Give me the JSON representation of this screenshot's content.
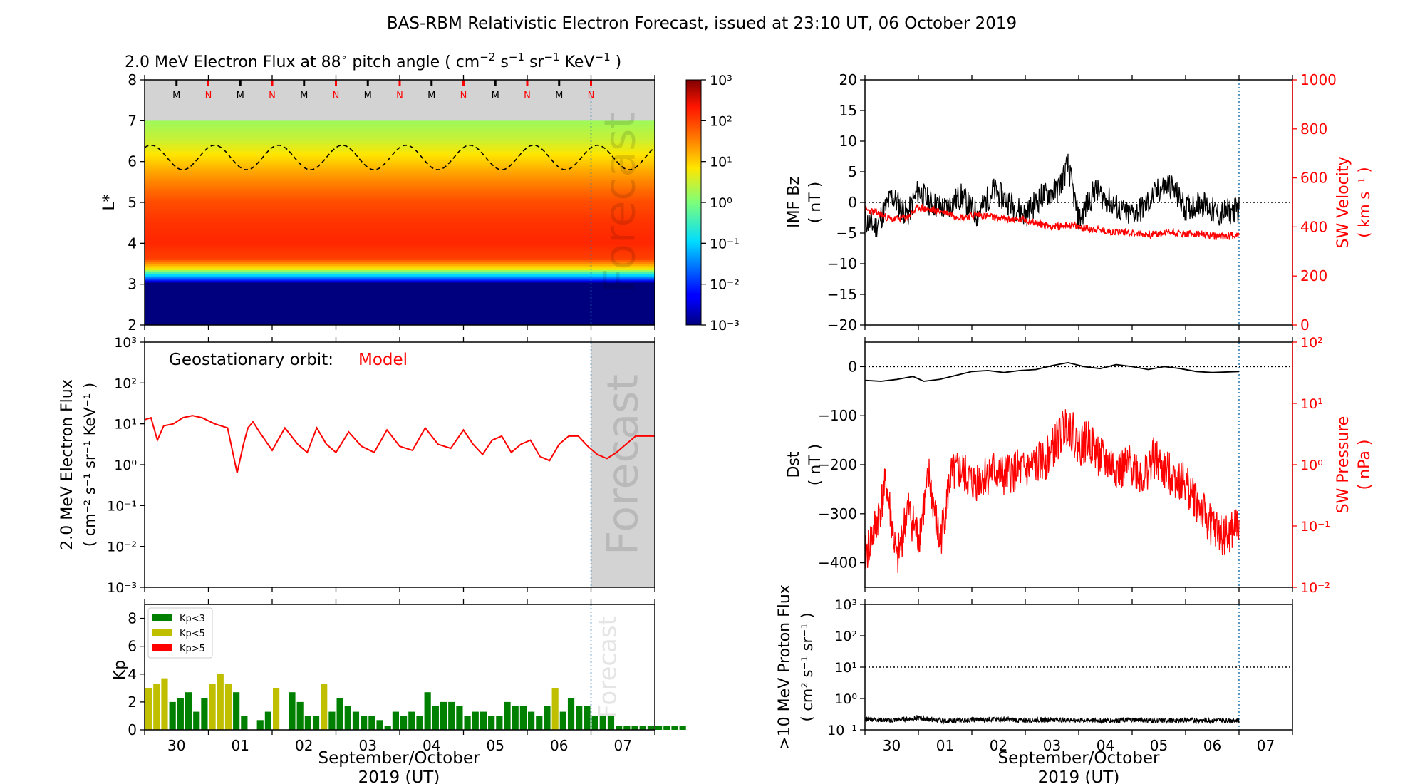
{
  "figure_title": "BAS-RBM Relativistic Electron Forecast, issued at 23:10 UT, 06 October 2019",
  "colors": {
    "red": "#ff0000",
    "black": "#000000",
    "green": "#008000",
    "olive": "#bfbf00",
    "forecast_grey": "#d3d3d3",
    "divider": "#1f77b4"
  },
  "chart_data": [
    {
      "id": "flux-heatmap",
      "type": "heatmap",
      "title": "2.0 MeV Electron Flux at 88 ° pitch angle ( cm⁻² s⁻¹ sr⁻¹ KeV⁻¹ )",
      "title_parts": {
        "pre": "2.0 MeV Electron Flux at 88",
        "deg": "∘",
        "mid": " pitch angle ( cm",
        "u1": "−2",
        "s": " s",
        "u2": "−1",
        "sr": " sr",
        "u3": "−1",
        "kev": " KeV",
        "u4": "−1",
        "post": " )"
      },
      "ylabel": "L*",
      "ylim": [
        2,
        8
      ],
      "yticks": [
        2,
        3,
        4,
        5,
        6,
        7,
        8
      ],
      "xlim": [
        0,
        8
      ],
      "forecast_start": 7,
      "forecast_label": "Forecast",
      "orbit_markers": [
        "M",
        "N",
        "M",
        "N",
        "M",
        "N",
        "M",
        "N",
        "M",
        "N",
        "M",
        "N",
        "M",
        "N"
      ],
      "colorbar": {
        "scale": "log",
        "min_exp": -3,
        "max_exp": 3,
        "ticks": [
          "10³",
          "10²",
          "10¹",
          "10⁰",
          "10⁻¹",
          "10⁻²",
          "10⁻³"
        ]
      },
      "band_profile": {
        "L": [
          2.0,
          3.0,
          3.1,
          3.2,
          3.35,
          3.6,
          4.0,
          4.5,
          5.0,
          5.6,
          6.0,
          6.5,
          7.0
        ],
        "log_flux": [
          -3,
          -3,
          -2,
          -1,
          0.7,
          2.0,
          2.2,
          2.1,
          1.9,
          1.4,
          1.0,
          0.5,
          0.2
        ]
      },
      "contour": {
        "mean_L": 6.1,
        "amplitude": 0.3,
        "cycles_per_day": 1,
        "style": "dashed"
      }
    },
    {
      "id": "geo-flux",
      "type": "line",
      "annotation_label": "Geostationary orbit:",
      "annotation_value": "Model",
      "ylabel_line1": "2.0 MeV Electron Flux",
      "ylabel_line2": "( cm⁻² s⁻¹ sr⁻¹ KeV⁻¹ )",
      "yscale": "log",
      "ylim_exp": [
        -3,
        3
      ],
      "yticks": [
        "10³",
        "10²",
        "10¹",
        "10⁰",
        "10⁻¹",
        "10⁻²",
        "10⁻³"
      ],
      "forecast_label": "Forecast",
      "series": [
        {
          "name": "Model",
          "color": "#ff0000",
          "x": [
            0.0,
            0.1,
            0.2,
            0.3,
            0.45,
            0.6,
            0.75,
            0.9,
            1.1,
            1.3,
            1.45,
            1.55,
            1.62,
            1.7,
            1.8,
            2.0,
            2.2,
            2.4,
            2.55,
            2.7,
            2.85,
            3.0,
            3.2,
            3.4,
            3.6,
            3.8,
            4.0,
            4.2,
            4.4,
            4.6,
            4.8,
            5.0,
            5.15,
            5.3,
            5.45,
            5.6,
            5.75,
            5.9,
            6.05,
            6.2,
            6.35,
            6.5,
            6.65,
            6.8,
            6.95,
            7.1,
            7.25,
            7.4,
            7.55,
            7.7,
            7.85,
            8.0
          ],
          "y_exp": [
            1.1,
            1.15,
            0.6,
            0.95,
            1.0,
            1.15,
            1.2,
            1.15,
            1.0,
            0.9,
            -0.2,
            0.5,
            0.9,
            1.05,
            0.8,
            0.35,
            0.9,
            0.5,
            0.3,
            0.9,
            0.5,
            0.3,
            0.8,
            0.45,
            0.3,
            0.85,
            0.45,
            0.35,
            0.9,
            0.5,
            0.4,
            0.85,
            0.5,
            0.25,
            0.6,
            0.7,
            0.3,
            0.5,
            0.6,
            0.2,
            0.1,
            0.5,
            0.7,
            0.7,
            0.45,
            0.25,
            0.15,
            0.3,
            0.5,
            0.7,
            0.7,
            0.7
          ]
        }
      ]
    },
    {
      "id": "kp-index",
      "type": "bar",
      "ylabel": "Kp",
      "ylim": [
        0,
        9
      ],
      "yticks": [
        0,
        2,
        4,
        6,
        8
      ],
      "forecast_label": "Forecast",
      "legend": [
        {
          "label": "Kp<3",
          "color": "#008000"
        },
        {
          "label": "Kp<5",
          "color": "#bfbf00"
        },
        {
          "label": "Kp>5",
          "color": "#ff0000"
        }
      ],
      "bin_width": 0.125,
      "values": [
        3.0,
        3.3,
        3.7,
        2.0,
        2.3,
        2.7,
        1.3,
        2.3,
        3.3,
        4.0,
        3.3,
        2.7,
        1.0,
        0.0,
        0.7,
        1.3,
        3.0,
        0.0,
        2.7,
        2.0,
        1.0,
        1.0,
        3.3,
        1.3,
        2.3,
        1.7,
        1.3,
        1.0,
        1.0,
        0.7,
        0.3,
        1.3,
        1.0,
        1.3,
        1.0,
        2.7,
        1.7,
        2.0,
        2.0,
        1.7,
        1.0,
        1.3,
        1.3,
        1.0,
        1.0,
        2.0,
        1.7,
        1.7,
        1.3,
        1.0,
        1.7,
        3.0,
        1.3,
        2.3,
        1.7,
        1.7,
        1.0,
        1.0,
        1.0,
        0.3,
        0.3,
        0.3,
        0.3,
        0.3,
        0.3,
        0.3,
        0.3,
        0.3
      ]
    },
    {
      "id": "imf-sw",
      "type": "line",
      "ylabel_left_1": "IMF Bz",
      "ylabel_left_2": "( nT )",
      "ylabel_right_1": "SW Velocity",
      "ylabel_right_2": "( km s⁻¹ )",
      "ylim_left": [
        -20,
        20
      ],
      "yticks_left": [
        20,
        15,
        10,
        5,
        0,
        -5,
        -10,
        -15,
        -20
      ],
      "ylim_right": [
        0,
        1000
      ],
      "yticks_right": [
        1000,
        800,
        600,
        400,
        200,
        0
      ],
      "series": [
        {
          "name": "IMF Bz",
          "color": "#000000",
          "x": [
            0.0,
            0.2,
            0.5,
            0.8,
            1.0,
            1.2,
            1.5,
            1.8,
            2.1,
            2.4,
            2.7,
            3.0,
            3.3,
            3.6,
            3.8,
            4.0,
            4.3,
            4.6,
            4.9,
            5.2,
            5.5,
            5.7,
            6.0,
            6.3,
            6.6,
            7.0
          ],
          "y": [
            -3,
            -4,
            1,
            -2,
            2,
            0,
            -1,
            1,
            -2,
            2,
            0,
            -2,
            1,
            2,
            6,
            -3,
            2,
            0,
            -2,
            -1,
            2,
            3,
            -1,
            0,
            -2,
            -1
          ]
        },
        {
          "name": "SW Velocity",
          "color": "#ff0000",
          "x": [
            0.0,
            0.2,
            0.5,
            0.8,
            1.0,
            1.2,
            1.5,
            1.8,
            2.1,
            2.4,
            2.7,
            3.0,
            3.3,
            3.6,
            3.8,
            4.0,
            4.3,
            4.6,
            4.9,
            5.2,
            5.5,
            5.7,
            6.0,
            6.3,
            6.6,
            7.0
          ],
          "y": [
            470,
            460,
            430,
            440,
            480,
            470,
            460,
            440,
            450,
            440,
            430,
            430,
            410,
            400,
            410,
            400,
            390,
            380,
            380,
            370,
            370,
            380,
            370,
            370,
            360,
            370
          ]
        }
      ],
      "zero_line": 0
    },
    {
      "id": "dst-pressure",
      "type": "line",
      "ylabel_left_1": "Dst",
      "ylabel_left_2": "( nT )",
      "ylabel_right_1": "SW Pressure",
      "ylabel_right_2": "( nPa )",
      "ylim_left": [
        -450,
        50
      ],
      "yticks_left": [
        0,
        -100,
        -200,
        -300,
        -400
      ],
      "yscale_right": "log",
      "ylim_right_exp": [
        -2,
        2
      ],
      "yticks_right": [
        "10²",
        "10¹",
        "10⁰",
        "10⁻¹",
        "10⁻²"
      ],
      "series": [
        {
          "name": "Dst",
          "color": "#000000",
          "x": [
            0.0,
            0.3,
            0.6,
            0.9,
            1.1,
            1.4,
            1.7,
            2.0,
            2.3,
            2.6,
            2.9,
            3.2,
            3.5,
            3.8,
            4.1,
            4.4,
            4.7,
            5.0,
            5.3,
            5.6,
            5.9,
            6.2,
            6.5,
            7.0
          ],
          "y": [
            -28,
            -30,
            -26,
            -20,
            -30,
            -26,
            -18,
            -10,
            -8,
            -12,
            -8,
            -6,
            2,
            8,
            0,
            -4,
            4,
            0,
            -6,
            0,
            -4,
            -10,
            -12,
            -10
          ]
        },
        {
          "name": "SW Pressure",
          "color": "#ff0000",
          "x": [
            0.0,
            0.2,
            0.4,
            0.6,
            0.8,
            1.0,
            1.2,
            1.4,
            1.6,
            1.8,
            2.0,
            2.2,
            2.4,
            2.6,
            2.8,
            3.0,
            3.2,
            3.4,
            3.6,
            3.8,
            4.0,
            4.2,
            4.4,
            4.6,
            4.8,
            5.0,
            5.2,
            5.4,
            5.6,
            5.8,
            6.0,
            6.2,
            6.4,
            6.6,
            6.8,
            7.0
          ],
          "y_exp": [
            -1.5,
            -1.0,
            -0.3,
            -1.6,
            -0.7,
            -1.2,
            -0.2,
            -1.3,
            -0.2,
            -0.1,
            -0.3,
            -0.2,
            -0.1,
            -0.2,
            -0.1,
            -0.1,
            0.0,
            0.1,
            0.4,
            0.7,
            0.3,
            0.4,
            0.1,
            0.0,
            -0.1,
            0.0,
            -0.2,
            0.1,
            -0.1,
            -0.2,
            -0.3,
            -0.6,
            -0.9,
            -1.1,
            -1.2,
            -0.9
          ]
        }
      ],
      "zero_line": 0
    },
    {
      "id": "proton-flux",
      "type": "line",
      "ylabel_line1": ">10 MeV Proton Flux",
      "ylabel_line2": "( cm² s⁻¹ sr⁻¹ )",
      "yscale": "log",
      "ylim_exp": [
        -1,
        3
      ],
      "yticks": [
        "10³",
        "10²",
        "10¹",
        "10⁰",
        "10⁻¹"
      ],
      "threshold_exp": 1,
      "series": [
        {
          "name": ">10 MeV Proton Flux",
          "color": "#000000",
          "x": [
            0.0,
            0.5,
            1.0,
            1.5,
            2.0,
            2.5,
            3.0,
            3.5,
            4.0,
            4.5,
            5.0,
            5.5,
            6.0,
            6.5,
            7.0
          ],
          "y_exp": [
            -0.65,
            -0.7,
            -0.62,
            -0.72,
            -0.68,
            -0.66,
            -0.7,
            -0.67,
            -0.69,
            -0.7,
            -0.68,
            -0.71,
            -0.69,
            -0.7,
            -0.7
          ]
        }
      ]
    }
  ],
  "xaxis": {
    "day_labels": [
      "30",
      "01",
      "02",
      "03",
      "04",
      "05",
      "06",
      "07"
    ],
    "xlabel_line1": "September/October",
    "xlabel_line2": "2019 (UT)"
  }
}
